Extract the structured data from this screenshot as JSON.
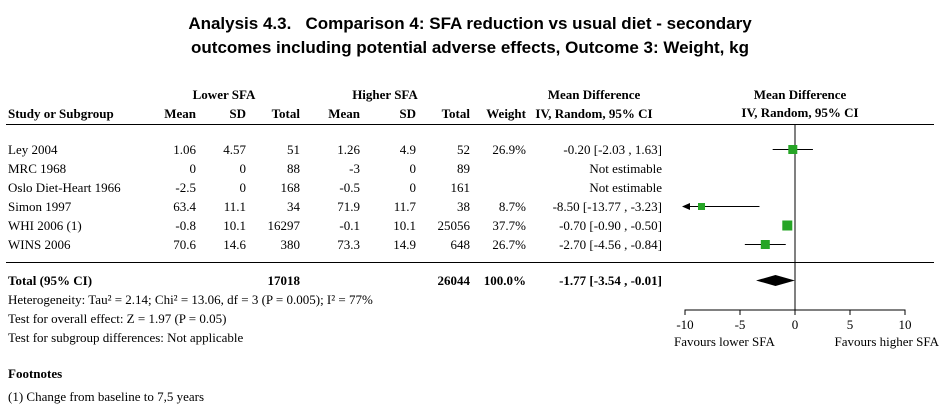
{
  "title": {
    "line1": "Analysis 4.3.   Comparison 4: SFA reduction vs usual diet - secondary",
    "line2": "outcomes including potential adverse effects, Outcome 3: Weight, kg"
  },
  "header": {
    "group1": "Lower SFA",
    "group2": "Higher SFA",
    "md_text_col": "Mean Difference",
    "md_plot_col": "Mean Difference",
    "study": "Study or Subgroup",
    "mean": "Mean",
    "sd": "SD",
    "total": "Total",
    "weight": "Weight",
    "ci_method": "IV, Random, 95% CI"
  },
  "chart_data": {
    "type": "forest",
    "effect_measure": "Mean Difference, IV, Random, 95% CI",
    "x_axis": {
      "min": -10,
      "max": 10,
      "ticks": [
        -10,
        -5,
        0,
        5,
        10
      ]
    },
    "favours_left": "Favours lower SFA",
    "favours_right": "Favours higher SFA",
    "studies": [
      {
        "label": "Ley 2004",
        "mean1": "1.06",
        "sd1": "4.57",
        "total1": "51",
        "mean2": "1.26",
        "sd2": "4.9",
        "total2": "52",
        "weight": "26.9%",
        "ci_text": "-0.20 [-2.03 , 1.63]",
        "md": -0.2,
        "lo": -2.03,
        "hi": 1.63,
        "weight_pct": 26.9
      },
      {
        "label": "MRC 1968",
        "mean1": "0",
        "sd1": "0",
        "total1": "88",
        "mean2": "-3",
        "sd2": "0",
        "total2": "89",
        "weight": "",
        "ci_text": "Not estimable",
        "md": null,
        "lo": null,
        "hi": null,
        "weight_pct": null
      },
      {
        "label": "Oslo Diet-Heart 1966",
        "mean1": "-2.5",
        "sd1": "0",
        "total1": "168",
        "mean2": "-0.5",
        "sd2": "0",
        "total2": "161",
        "weight": "",
        "ci_text": "Not estimable",
        "md": null,
        "lo": null,
        "hi": null,
        "weight_pct": null
      },
      {
        "label": "Simon 1997",
        "mean1": "63.4",
        "sd1": "11.1",
        "total1": "34",
        "mean2": "71.9",
        "sd2": "11.7",
        "total2": "38",
        "weight": "8.7%",
        "ci_text": "-8.50 [-13.77 , -3.23]",
        "md": -8.5,
        "lo": -13.77,
        "hi": -3.23,
        "weight_pct": 8.7
      },
      {
        "label": "WHI 2006 (1)",
        "mean1": "-0.8",
        "sd1": "10.1",
        "total1": "16297",
        "mean2": "-0.1",
        "sd2": "10.1",
        "total2": "25056",
        "weight": "37.7%",
        "ci_text": "-0.70 [-0.90 , -0.50]",
        "md": -0.7,
        "lo": -0.9,
        "hi": -0.5,
        "weight_pct": 37.7
      },
      {
        "label": "WINS 2006",
        "mean1": "70.6",
        "sd1": "14.6",
        "total1": "380",
        "mean2": "73.3",
        "sd2": "14.9",
        "total2": "648",
        "weight": "26.7%",
        "ci_text": "-2.70 [-4.56 , -0.84]",
        "md": -2.7,
        "lo": -4.56,
        "hi": -0.84,
        "weight_pct": 26.7
      }
    ],
    "total": {
      "label": "Total (95% CI)",
      "mean1": "",
      "sd1": "",
      "total1": "17018",
      "mean2": "",
      "sd2": "",
      "total2": "26044",
      "weight": "100.0%",
      "ci_text": "-1.77 [-3.54 , -0.01]",
      "md": -1.77,
      "lo": -3.54,
      "hi": -0.01
    }
  },
  "stats": {
    "heterogeneity": "Heterogeneity: Tau² = 2.14; Chi² = 13.06, df = 3 (P = 0.005); I² = 77%",
    "overall": "Test for overall effect: Z = 1.97 (P = 0.05)",
    "subgroup": "Test for subgroup differences: Not applicable"
  },
  "footnotes": {
    "heading": "Footnotes",
    "items": [
      "(1) Change from baseline to 7,5 years"
    ]
  },
  "colors": {
    "marker": "#26a526",
    "diamond": "#000000",
    "line": "#000000"
  }
}
